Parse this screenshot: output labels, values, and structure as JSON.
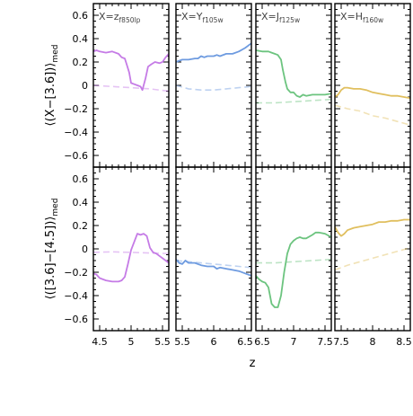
{
  "chart_data": {
    "type": "line",
    "xlabel": "z",
    "row_ylabels": [
      "⟨(X−[3.6])⟩",
      "⟨([3.6]−[4.5])⟩"
    ],
    "ylabel_subscript": "med",
    "ylim": [
      -0.7,
      0.7
    ],
    "yticks": [
      "0.6",
      "0.4",
      "0.2",
      "0",
      "−0.2",
      "−0.4",
      "−0.6"
    ],
    "ytick_values": [
      0.6,
      0.4,
      0.2,
      0,
      -0.2,
      -0.4,
      -0.6
    ],
    "columns": [
      {
        "label_main": "X=z",
        "label_sub": "f850lp",
        "color": "#c57be6",
        "xlim": [
          4.4,
          5.6
        ],
        "xticks": [
          "4.5",
          "5",
          "5.5"
        ],
        "xtick_values": [
          4.5,
          5.0,
          5.5
        ],
        "top_solid": [
          [
            4.4,
            0.29
          ],
          [
            4.45,
            0.3
          ],
          [
            4.5,
            0.29
          ],
          [
            4.6,
            0.28
          ],
          [
            4.7,
            0.29
          ],
          [
            4.8,
            0.27
          ],
          [
            4.85,
            0.24
          ],
          [
            4.9,
            0.23
          ],
          [
            4.93,
            0.18
          ],
          [
            4.97,
            0.11
          ],
          [
            5.0,
            0.02
          ],
          [
            5.05,
            0.01
          ],
          [
            5.1,
            0.0
          ],
          [
            5.15,
            -0.01
          ],
          [
            5.18,
            -0.04
          ],
          [
            5.23,
            0.06
          ],
          [
            5.27,
            0.16
          ],
          [
            5.32,
            0.18
          ],
          [
            5.38,
            0.2
          ],
          [
            5.45,
            0.19
          ],
          [
            5.5,
            0.2
          ],
          [
            5.55,
            0.24
          ],
          [
            5.6,
            0.27
          ]
        ],
        "top_dashed": [
          [
            4.4,
            0.0
          ],
          [
            4.7,
            -0.01
          ],
          [
            5.0,
            -0.02
          ],
          [
            5.3,
            -0.03
          ],
          [
            5.6,
            -0.05
          ]
        ],
        "bottom_solid": [
          [
            4.4,
            -0.21
          ],
          [
            4.45,
            -0.22
          ],
          [
            4.5,
            -0.25
          ],
          [
            4.6,
            -0.27
          ],
          [
            4.7,
            -0.28
          ],
          [
            4.8,
            -0.28
          ],
          [
            4.85,
            -0.27
          ],
          [
            4.9,
            -0.24
          ],
          [
            4.95,
            -0.13
          ],
          [
            5.0,
            -0.01
          ],
          [
            5.05,
            0.06
          ],
          [
            5.1,
            0.13
          ],
          [
            5.15,
            0.12
          ],
          [
            5.2,
            0.13
          ],
          [
            5.25,
            0.11
          ],
          [
            5.3,
            0.01
          ],
          [
            5.35,
            -0.03
          ],
          [
            5.4,
            -0.04
          ],
          [
            5.45,
            -0.06
          ],
          [
            5.5,
            -0.08
          ],
          [
            5.6,
            -0.12
          ]
        ],
        "bottom_dashed": [
          [
            4.4,
            -0.03
          ],
          [
            4.7,
            -0.025
          ],
          [
            5.0,
            -0.03
          ],
          [
            5.3,
            -0.035
          ],
          [
            5.6,
            -0.04
          ]
        ]
      },
      {
        "label_main": "X=Y",
        "label_sub": "f105w",
        "color": "#6e9be0",
        "xlim": [
          5.4,
          6.6
        ],
        "xticks": [
          "5.5",
          "6",
          "6.5"
        ],
        "xtick_values": [
          5.5,
          6.0,
          6.5
        ],
        "top_solid": [
          [
            5.4,
            0.2
          ],
          [
            5.5,
            0.22
          ],
          [
            5.6,
            0.22
          ],
          [
            5.7,
            0.23
          ],
          [
            5.75,
            0.23
          ],
          [
            5.8,
            0.25
          ],
          [
            5.85,
            0.24
          ],
          [
            5.9,
            0.25
          ],
          [
            6.0,
            0.25
          ],
          [
            6.05,
            0.26
          ],
          [
            6.1,
            0.25
          ],
          [
            6.2,
            0.27
          ],
          [
            6.3,
            0.27
          ],
          [
            6.4,
            0.29
          ],
          [
            6.5,
            0.32
          ],
          [
            6.6,
            0.36
          ]
        ],
        "top_dashed": [
          [
            5.4,
            0.0
          ],
          [
            5.6,
            -0.03
          ],
          [
            5.8,
            -0.04
          ],
          [
            6.0,
            -0.04
          ],
          [
            6.2,
            -0.03
          ],
          [
            6.4,
            -0.02
          ],
          [
            6.6,
            -0.01
          ]
        ],
        "bottom_solid": [
          [
            5.4,
            -0.09
          ],
          [
            5.45,
            -0.12
          ],
          [
            5.5,
            -0.13
          ],
          [
            5.55,
            -0.1
          ],
          [
            5.6,
            -0.12
          ],
          [
            5.7,
            -0.12
          ],
          [
            5.8,
            -0.14
          ],
          [
            5.9,
            -0.15
          ],
          [
            6.0,
            -0.15
          ],
          [
            6.05,
            -0.17
          ],
          [
            6.1,
            -0.16
          ],
          [
            6.2,
            -0.17
          ],
          [
            6.3,
            -0.18
          ],
          [
            6.4,
            -0.19
          ],
          [
            6.5,
            -0.21
          ],
          [
            6.6,
            -0.23
          ]
        ],
        "bottom_dashed": [
          [
            5.4,
            -0.1
          ],
          [
            5.6,
            -0.11
          ],
          [
            5.8,
            -0.12
          ],
          [
            6.0,
            -0.13
          ],
          [
            6.2,
            -0.14
          ],
          [
            6.4,
            -0.15
          ],
          [
            6.6,
            -0.16
          ]
        ]
      },
      {
        "label_main": "X=J",
        "label_sub": "f125w",
        "color": "#6cc47f",
        "xlim": [
          6.4,
          7.6
        ],
        "xticks": [
          "6.5",
          "7",
          "7.5"
        ],
        "xtick_values": [
          6.5,
          7.0,
          7.5
        ],
        "top_solid": [
          [
            6.4,
            0.3
          ],
          [
            6.5,
            0.29
          ],
          [
            6.6,
            0.29
          ],
          [
            6.65,
            0.28
          ],
          [
            6.7,
            0.27
          ],
          [
            6.75,
            0.26
          ],
          [
            6.8,
            0.22
          ],
          [
            6.83,
            0.13
          ],
          [
            6.87,
            0.03
          ],
          [
            6.9,
            -0.03
          ],
          [
            6.95,
            -0.06
          ],
          [
            7.0,
            -0.06
          ],
          [
            7.05,
            -0.09
          ],
          [
            7.1,
            -0.1
          ],
          [
            7.15,
            -0.08
          ],
          [
            7.2,
            -0.09
          ],
          [
            7.3,
            -0.08
          ],
          [
            7.4,
            -0.08
          ],
          [
            7.5,
            -0.08
          ],
          [
            7.6,
            -0.07
          ]
        ],
        "top_dashed": [
          [
            6.4,
            -0.15
          ],
          [
            6.7,
            -0.15
          ],
          [
            7.0,
            -0.14
          ],
          [
            7.3,
            -0.13
          ],
          [
            7.6,
            -0.12
          ]
        ],
        "bottom_solid": [
          [
            6.4,
            -0.23
          ],
          [
            6.45,
            -0.26
          ],
          [
            6.5,
            -0.28
          ],
          [
            6.55,
            -0.29
          ],
          [
            6.6,
            -0.33
          ],
          [
            6.65,
            -0.47
          ],
          [
            6.7,
            -0.5
          ],
          [
            6.75,
            -0.5
          ],
          [
            6.8,
            -0.4
          ],
          [
            6.85,
            -0.2
          ],
          [
            6.9,
            -0.04
          ],
          [
            6.95,
            0.04
          ],
          [
            7.0,
            0.07
          ],
          [
            7.05,
            0.09
          ],
          [
            7.1,
            0.1
          ],
          [
            7.15,
            0.09
          ],
          [
            7.2,
            0.09
          ],
          [
            7.3,
            0.12
          ],
          [
            7.35,
            0.14
          ],
          [
            7.4,
            0.14
          ],
          [
            7.5,
            0.13
          ],
          [
            7.6,
            0.1
          ]
        ],
        "bottom_dashed": [
          [
            6.4,
            -0.12
          ],
          [
            6.7,
            -0.12
          ],
          [
            7.0,
            -0.11
          ],
          [
            7.3,
            -0.1
          ],
          [
            7.6,
            -0.09
          ]
        ]
      },
      {
        "label_main": "X=H",
        "label_sub": "f160w",
        "color": "#e0bf5e",
        "xlim": [
          7.4,
          8.6
        ],
        "xticks": [
          "7.5",
          "8",
          "8.5"
        ],
        "xtick_values": [
          7.5,
          8.0,
          8.5
        ],
        "top_solid": [
          [
            7.4,
            -0.1
          ],
          [
            7.45,
            -0.08
          ],
          [
            7.5,
            -0.04
          ],
          [
            7.55,
            -0.02
          ],
          [
            7.6,
            -0.02
          ],
          [
            7.7,
            -0.03
          ],
          [
            7.8,
            -0.03
          ],
          [
            7.9,
            -0.04
          ],
          [
            8.0,
            -0.06
          ],
          [
            8.1,
            -0.07
          ],
          [
            8.2,
            -0.08
          ],
          [
            8.3,
            -0.09
          ],
          [
            8.4,
            -0.09
          ],
          [
            8.5,
            -0.1
          ],
          [
            8.6,
            -0.11
          ]
        ],
        "top_dashed": [
          [
            7.4,
            -0.17
          ],
          [
            7.6,
            -0.2
          ],
          [
            7.8,
            -0.22
          ],
          [
            8.0,
            -0.26
          ],
          [
            8.2,
            -0.28
          ],
          [
            8.4,
            -0.31
          ],
          [
            8.6,
            -0.34
          ]
        ],
        "bottom_solid": [
          [
            7.4,
            0.19
          ],
          [
            7.45,
            0.14
          ],
          [
            7.5,
            0.11
          ],
          [
            7.55,
            0.13
          ],
          [
            7.6,
            0.16
          ],
          [
            7.7,
            0.18
          ],
          [
            7.8,
            0.19
          ],
          [
            7.9,
            0.2
          ],
          [
            8.0,
            0.21
          ],
          [
            8.1,
            0.23
          ],
          [
            8.2,
            0.23
          ],
          [
            8.3,
            0.24
          ],
          [
            8.4,
            0.24
          ],
          [
            8.5,
            0.25
          ],
          [
            8.6,
            0.25
          ]
        ],
        "bottom_dashed": [
          [
            7.4,
            -0.18
          ],
          [
            7.6,
            -0.14
          ],
          [
            7.8,
            -0.11
          ],
          [
            8.0,
            -0.08
          ],
          [
            8.2,
            -0.05
          ],
          [
            8.4,
            -0.02
          ],
          [
            8.6,
            0.01
          ]
        ]
      }
    ]
  }
}
